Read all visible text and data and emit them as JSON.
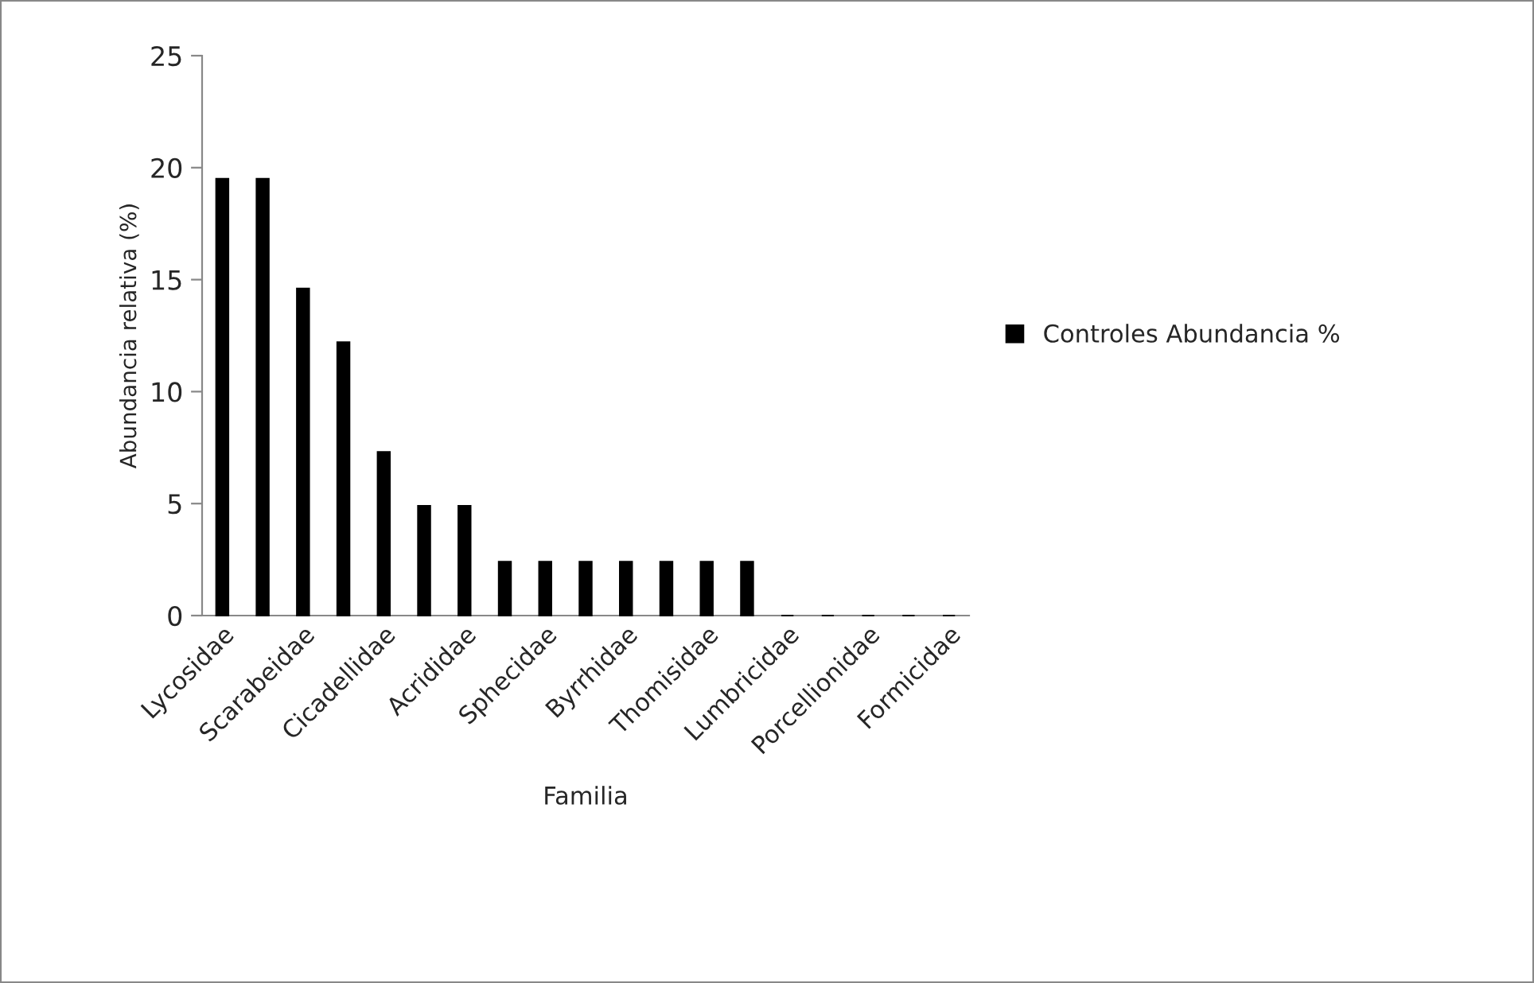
{
  "chart_data": {
    "type": "bar",
    "xlabel": "Familia",
    "ylabel": "Abundancia relativa (%)",
    "categories": [
      "Lycosidae",
      null,
      "Scarabeidae",
      null,
      "Cicadellidae",
      null,
      "Acrididae",
      null,
      "Sphecidae",
      null,
      "Byrrhidae",
      null,
      "Thomisidae",
      null,
      "Lumbricidae",
      null,
      "Porcellionidae",
      null,
      "Formicidae"
    ],
    "series": [
      {
        "name": "Controles Abundancia %",
        "color": "#000000",
        "values": [
          19.5,
          19.5,
          14.6,
          12.2,
          7.3,
          4.9,
          4.9,
          2.4,
          2.4,
          2.4,
          2.4,
          2.4,
          2.4,
          2.4,
          0,
          0,
          0,
          0,
          0
        ]
      }
    ],
    "ylim": [
      0,
      25
    ],
    "yticks": [
      0,
      5,
      10,
      15,
      20,
      25
    ],
    "grid": false,
    "legend": "right"
  }
}
